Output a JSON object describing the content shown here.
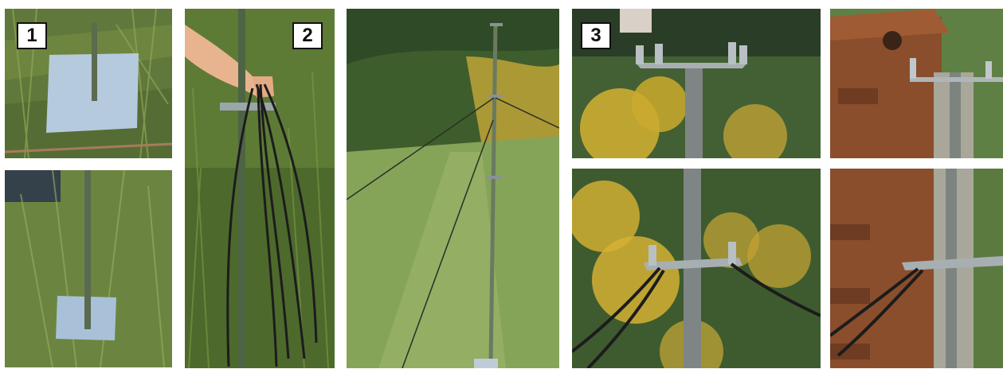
{
  "figure": {
    "steps": [
      {
        "label": "1"
      },
      {
        "label": "2"
      },
      {
        "label": "3"
      }
    ]
  },
  "photos": [
    {
      "subject": "ground-stake-plate-top"
    },
    {
      "subject": "ground-stake-plate-bottom"
    },
    {
      "subject": "hand-holding-cables-on-pole"
    },
    {
      "subject": "pole-with-guy-wires-in-field"
    },
    {
      "subject": "pole-top-bracket"
    },
    {
      "subject": "pole-top-bracket-with-box"
    },
    {
      "subject": "pole-mid-bracket-with-cables"
    },
    {
      "subject": "pole-mid-bracket-with-box"
    }
  ],
  "colors": {
    "grass": "#5f7a3a",
    "pole": "#5a6b4a",
    "plate": "#a9c0d6",
    "goldenrod": "#d8b736",
    "box": "#8a4e2c",
    "cable": "#1c1c1c"
  }
}
